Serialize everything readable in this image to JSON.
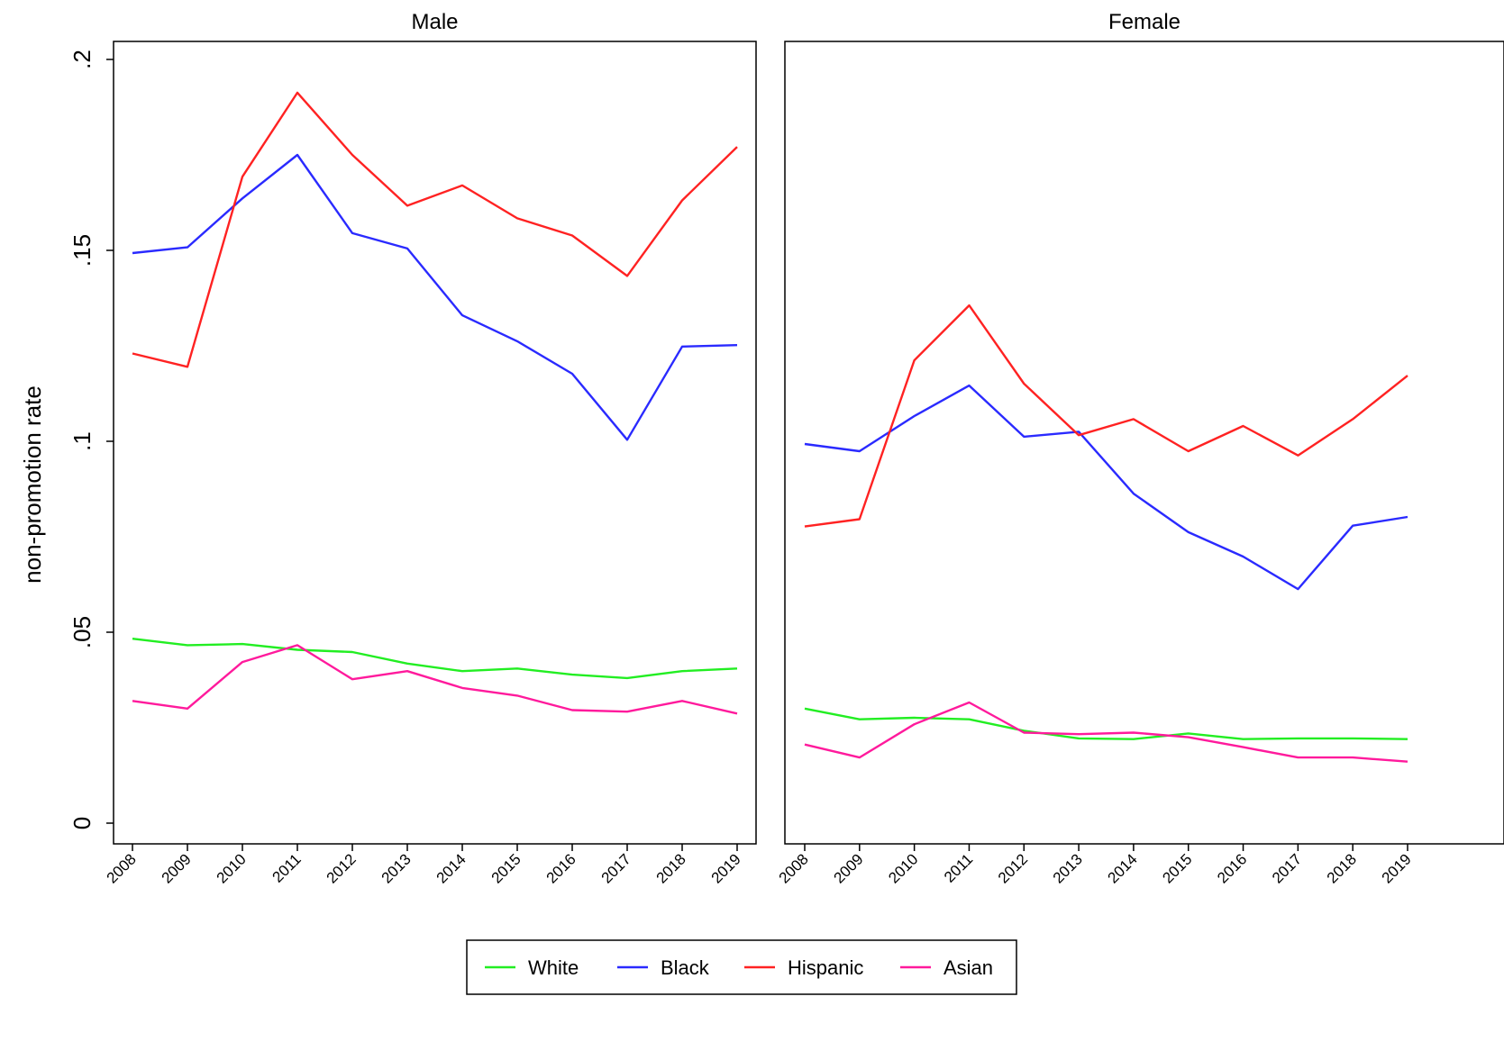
{
  "chart_data": {
    "type": "line",
    "ylabel": "non-promotion rate",
    "ylim": [
      0,
      0.2
    ],
    "yticks": [
      {
        "value": 0,
        "label": "0"
      },
      {
        "value": 0.05,
        "label": ".05"
      },
      {
        "value": 0.1,
        "label": ".1"
      },
      {
        "value": 0.15,
        "label": ".15"
      },
      {
        "value": 0.2,
        "label": ".2"
      }
    ],
    "x": [
      "2008",
      "2009",
      "2010",
      "2011",
      "2012",
      "2013",
      "2014",
      "2015",
      "2016",
      "2017",
      "2018",
      "2019"
    ],
    "legend_position": "bottom",
    "legend": [
      {
        "name": "White",
        "color": "#22ee22"
      },
      {
        "name": "Black",
        "color": "#2a2aff"
      },
      {
        "name": "Hispanic",
        "color": "#ff2222"
      },
      {
        "name": "Asian",
        "color": "#ff1a9c"
      }
    ],
    "panels": [
      {
        "title": "Male",
        "series": [
          {
            "name": "White",
            "color": "#22ee22",
            "values": [
              0.0483,
              0.0466,
              0.0469,
              0.0454,
              0.0448,
              0.0418,
              0.0398,
              0.0405,
              0.0389,
              0.038,
              0.0398,
              0.0405
            ]
          },
          {
            "name": "Black",
            "color": "#2a2aff",
            "values": [
              0.1493,
              0.1508,
              0.1636,
              0.175,
              0.1545,
              0.1505,
              0.133,
              0.1262,
              0.1177,
              0.1004,
              0.1248,
              0.1252
            ]
          },
          {
            "name": "Hispanic",
            "color": "#ff2222",
            "values": [
              0.123,
              0.1195,
              0.1693,
              0.1913,
              0.175,
              0.1617,
              0.167,
              0.1584,
              0.1539,
              0.1433,
              0.1631,
              0.1771
            ]
          },
          {
            "name": "Asian",
            "color": "#ff1a9c",
            "values": [
              0.032,
              0.03,
              0.0422,
              0.0466,
              0.0377,
              0.0398,
              0.0354,
              0.0334,
              0.0296,
              0.0292,
              0.032,
              0.0287
            ]
          }
        ]
      },
      {
        "title": "Female",
        "series": [
          {
            "name": "White",
            "color": "#22ee22",
            "values": [
              0.03,
              0.0272,
              0.0276,
              0.0272,
              0.0242,
              0.0222,
              0.022,
              0.0235,
              0.022,
              0.0222,
              0.0222,
              0.022
            ]
          },
          {
            "name": "Black",
            "color": "#2a2aff",
            "values": [
              0.0993,
              0.0974,
              0.1066,
              0.1146,
              0.1012,
              0.1025,
              0.0863,
              0.0762,
              0.0698,
              0.0613,
              0.0779,
              0.0802
            ]
          },
          {
            "name": "Hispanic",
            "color": "#ff2222",
            "values": [
              0.0777,
              0.0796,
              0.1212,
              0.1356,
              0.1151,
              0.1016,
              0.1058,
              0.0974,
              0.104,
              0.0963,
              0.1058,
              0.1172
            ]
          },
          {
            "name": "Asian",
            "color": "#ff1a9c",
            "values": [
              0.0206,
              0.0172,
              0.0259,
              0.0316,
              0.0237,
              0.0233,
              0.0237,
              0.0225,
              0.0199,
              0.0172,
              0.0172,
              0.0161
            ]
          }
        ]
      }
    ]
  }
}
